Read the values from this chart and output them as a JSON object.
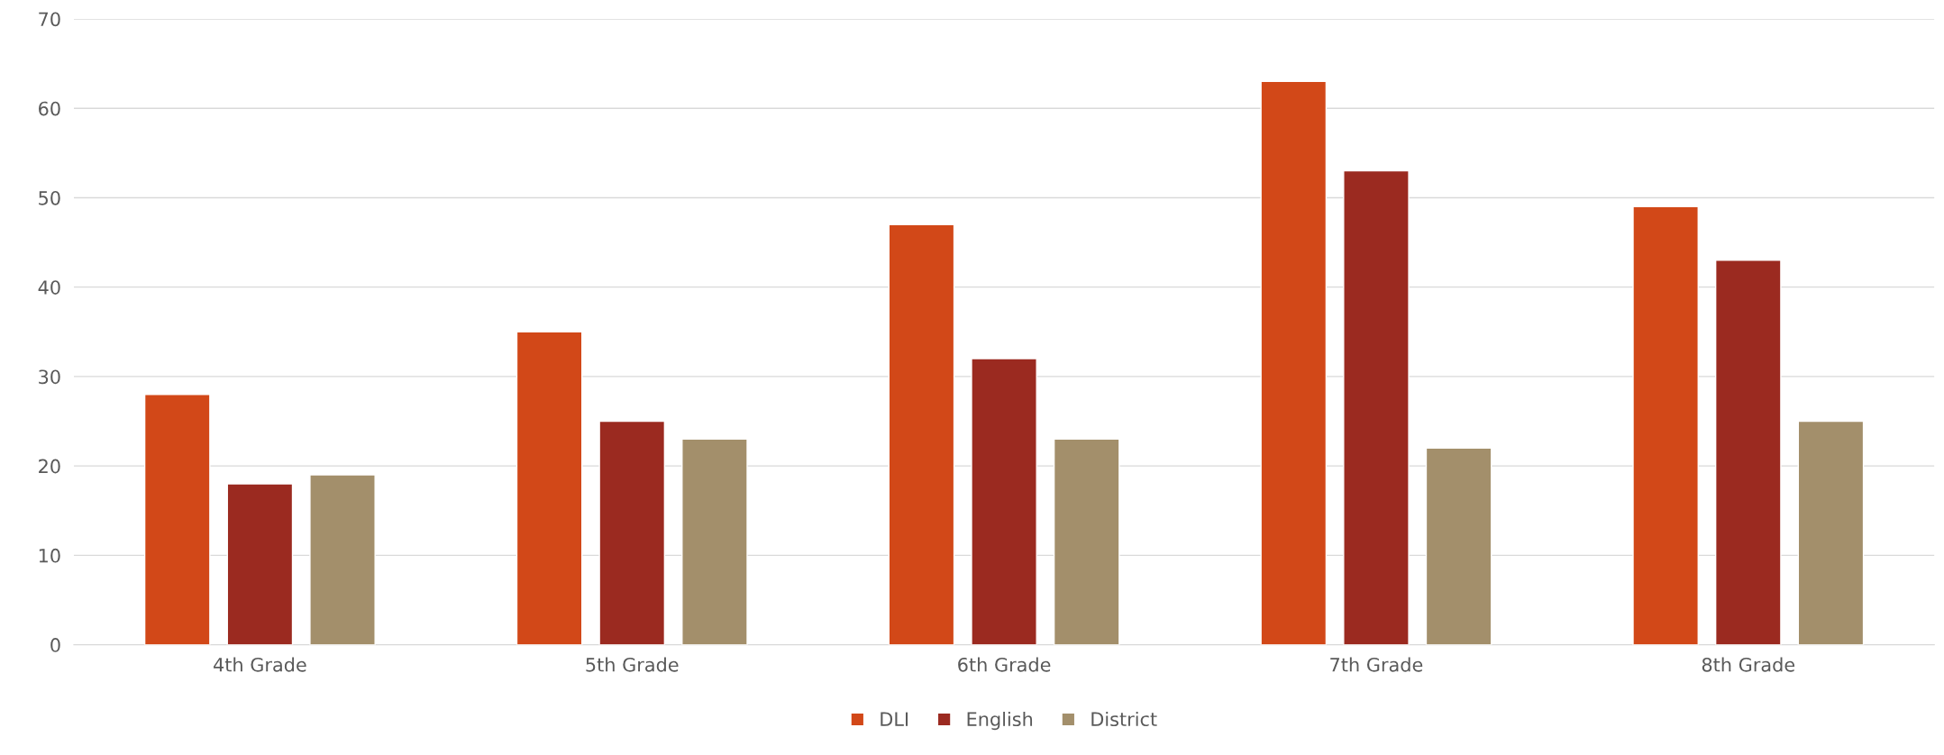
{
  "chart_data": {
    "type": "bar",
    "categories": [
      "4th Grade",
      "5th Grade",
      "6th Grade",
      "7th Grade",
      "8th Grade"
    ],
    "series": [
      {
        "name": "DLI",
        "color": "#d24818",
        "values": [
          28,
          35,
          47,
          63,
          49
        ]
      },
      {
        "name": "English",
        "color": "#9b2a20",
        "values": [
          18,
          25,
          32,
          53,
          43
        ]
      },
      {
        "name": "District",
        "color": "#a38f6b",
        "values": [
          19,
          23,
          23,
          22,
          25
        ]
      }
    ],
    "ylim": [
      0,
      70
    ],
    "yticks": [
      0,
      10,
      20,
      30,
      40,
      50,
      60,
      70
    ],
    "grid": "y",
    "legend": "bottom"
  }
}
